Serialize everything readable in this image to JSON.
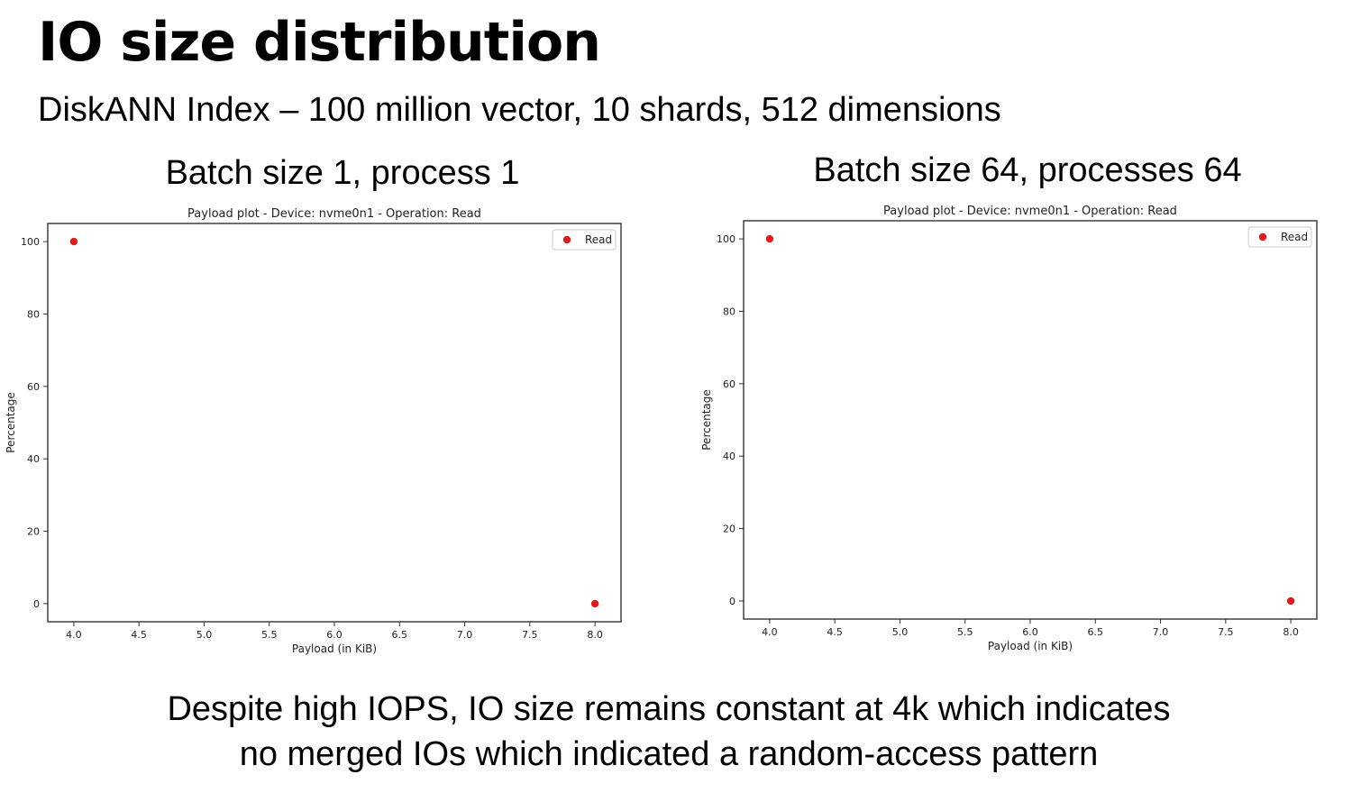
{
  "slide": {
    "title": "IO size distribution",
    "subtitle": "DiskANN Index – 100 million vector, 10 shards, 512 dimensions",
    "conclusion_line1": "Despite high IOPS, IO size remains constant at 4k which indicates",
    "conclusion_line2": "no merged IOs which indicated a random-access pattern"
  },
  "panels": [
    {
      "heading": "Batch size 1, process 1"
    },
    {
      "heading": "Batch size 64, processes 64"
    }
  ],
  "colors": {
    "series": "#e31a1c",
    "axis": "#333333"
  },
  "chart_data": [
    {
      "type": "scatter",
      "title": "Payload plot - Device: nvme0n1 - Operation: Read",
      "xlabel": "Payload (in KiB)",
      "ylabel": "Percentage",
      "xlim": [
        3.8,
        8.2
      ],
      "ylim": [
        -5,
        105
      ],
      "xticks": [
        4.0,
        4.5,
        5.0,
        5.5,
        6.0,
        6.5,
        7.0,
        7.5,
        8.0
      ],
      "xtick_labels": [
        "4.0",
        "4.5",
        "5.0",
        "5.5",
        "6.0",
        "6.5",
        "7.0",
        "7.5",
        "8.0"
      ],
      "yticks": [
        0,
        20,
        40,
        60,
        80,
        100
      ],
      "ytick_labels": [
        "0",
        "20",
        "40",
        "60",
        "80",
        "100"
      ],
      "grid": false,
      "legend": "top-right",
      "series": [
        {
          "name": "Read",
          "x": [
            4.0,
            8.0
          ],
          "y": [
            100,
            0
          ]
        }
      ]
    },
    {
      "type": "scatter",
      "title": "Payload plot - Device: nvme0n1 - Operation: Read",
      "xlabel": "Payload (in KiB)",
      "ylabel": "Percentage",
      "xlim": [
        3.8,
        8.2
      ],
      "ylim": [
        -5,
        105
      ],
      "xticks": [
        4.0,
        4.5,
        5.0,
        5.5,
        6.0,
        6.5,
        7.0,
        7.5,
        8.0
      ],
      "xtick_labels": [
        "4.0",
        "4.5",
        "5.0",
        "5.5",
        "6.0",
        "6.5",
        "7.0",
        "7.5",
        "8.0"
      ],
      "yticks": [
        0,
        20,
        40,
        60,
        80,
        100
      ],
      "ytick_labels": [
        "0",
        "20",
        "40",
        "60",
        "80",
        "100"
      ],
      "grid": false,
      "legend": "top-right",
      "series": [
        {
          "name": "Read",
          "x": [
            4.0,
            8.0
          ],
          "y": [
            100,
            0
          ]
        }
      ]
    }
  ]
}
